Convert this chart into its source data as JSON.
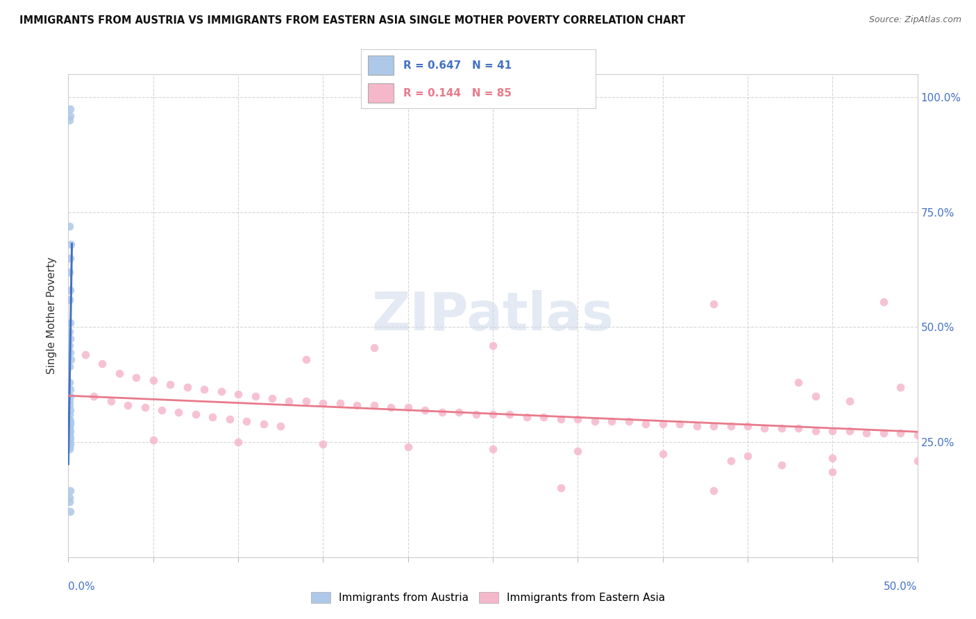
{
  "title": "IMMIGRANTS FROM AUSTRIA VS IMMIGRANTS FROM EASTERN ASIA SINGLE MOTHER POVERTY CORRELATION CHART",
  "source": "Source: ZipAtlas.com",
  "ylabel": "Single Mother Poverty",
  "blue_color": "#adc8e8",
  "pink_color": "#f5b8cb",
  "blue_line_color": "#4472c4",
  "pink_line_color": "#e87a8a",
  "watermark": "ZIPatlas",
  "blue_scatter": [
    [
      0.001,
      0.975
    ],
    [
      0.0012,
      0.96
    ],
    [
      0.0008,
      0.95
    ],
    [
      0.0006,
      0.72
    ],
    [
      0.0014,
      0.68
    ],
    [
      0.001,
      0.65
    ],
    [
      0.0008,
      0.62
    ],
    [
      0.0012,
      0.58
    ],
    [
      0.0006,
      0.56
    ],
    [
      0.001,
      0.51
    ],
    [
      0.0008,
      0.49
    ],
    [
      0.0012,
      0.475
    ],
    [
      0.0006,
      0.46
    ],
    [
      0.001,
      0.445
    ],
    [
      0.0014,
      0.43
    ],
    [
      0.0008,
      0.415
    ],
    [
      0.0006,
      0.38
    ],
    [
      0.001,
      0.365
    ],
    [
      0.0012,
      0.35
    ],
    [
      0.0008,
      0.34
    ],
    [
      0.0006,
      0.33
    ],
    [
      0.001,
      0.32
    ],
    [
      0.0008,
      0.31
    ],
    [
      0.0006,
      0.3
    ],
    [
      0.001,
      0.295
    ],
    [
      0.0012,
      0.29
    ],
    [
      0.0008,
      0.285
    ],
    [
      0.0006,
      0.28
    ],
    [
      0.001,
      0.275
    ],
    [
      0.0008,
      0.27
    ],
    [
      0.0006,
      0.265
    ],
    [
      0.001,
      0.26
    ],
    [
      0.0008,
      0.255
    ],
    [
      0.0006,
      0.25
    ],
    [
      0.001,
      0.245
    ],
    [
      0.0008,
      0.24
    ],
    [
      0.0006,
      0.235
    ],
    [
      0.001,
      0.145
    ],
    [
      0.0008,
      0.13
    ],
    [
      0.0006,
      0.12
    ],
    [
      0.001,
      0.1
    ]
  ],
  "pink_scatter": [
    [
      0.01,
      0.44
    ],
    [
      0.02,
      0.42
    ],
    [
      0.03,
      0.4
    ],
    [
      0.04,
      0.39
    ],
    [
      0.05,
      0.385
    ],
    [
      0.06,
      0.375
    ],
    [
      0.07,
      0.37
    ],
    [
      0.08,
      0.365
    ],
    [
      0.09,
      0.36
    ],
    [
      0.1,
      0.355
    ],
    [
      0.11,
      0.35
    ],
    [
      0.12,
      0.345
    ],
    [
      0.13,
      0.34
    ],
    [
      0.14,
      0.34
    ],
    [
      0.15,
      0.335
    ],
    [
      0.16,
      0.335
    ],
    [
      0.17,
      0.33
    ],
    [
      0.18,
      0.33
    ],
    [
      0.19,
      0.325
    ],
    [
      0.2,
      0.325
    ],
    [
      0.21,
      0.32
    ],
    [
      0.22,
      0.315
    ],
    [
      0.23,
      0.315
    ],
    [
      0.24,
      0.31
    ],
    [
      0.25,
      0.31
    ],
    [
      0.26,
      0.31
    ],
    [
      0.27,
      0.305
    ],
    [
      0.28,
      0.305
    ],
    [
      0.29,
      0.3
    ],
    [
      0.3,
      0.3
    ],
    [
      0.31,
      0.295
    ],
    [
      0.32,
      0.295
    ],
    [
      0.33,
      0.295
    ],
    [
      0.34,
      0.29
    ],
    [
      0.35,
      0.29
    ],
    [
      0.36,
      0.29
    ],
    [
      0.37,
      0.285
    ],
    [
      0.38,
      0.285
    ],
    [
      0.39,
      0.285
    ],
    [
      0.4,
      0.285
    ],
    [
      0.41,
      0.28
    ],
    [
      0.42,
      0.28
    ],
    [
      0.43,
      0.28
    ],
    [
      0.44,
      0.275
    ],
    [
      0.45,
      0.275
    ],
    [
      0.46,
      0.275
    ],
    [
      0.47,
      0.27
    ],
    [
      0.48,
      0.27
    ],
    [
      0.49,
      0.27
    ],
    [
      0.5,
      0.265
    ],
    [
      0.015,
      0.35
    ],
    [
      0.025,
      0.34
    ],
    [
      0.035,
      0.33
    ],
    [
      0.045,
      0.325
    ],
    [
      0.055,
      0.32
    ],
    [
      0.065,
      0.315
    ],
    [
      0.075,
      0.31
    ],
    [
      0.085,
      0.305
    ],
    [
      0.095,
      0.3
    ],
    [
      0.105,
      0.295
    ],
    [
      0.115,
      0.29
    ],
    [
      0.125,
      0.285
    ],
    [
      0.05,
      0.255
    ],
    [
      0.1,
      0.25
    ],
    [
      0.15,
      0.245
    ],
    [
      0.2,
      0.24
    ],
    [
      0.25,
      0.235
    ],
    [
      0.3,
      0.23
    ],
    [
      0.35,
      0.225
    ],
    [
      0.4,
      0.22
    ],
    [
      0.45,
      0.215
    ],
    [
      0.5,
      0.21
    ],
    [
      0.14,
      0.43
    ],
    [
      0.18,
      0.455
    ],
    [
      0.25,
      0.46
    ],
    [
      0.38,
      0.55
    ],
    [
      0.48,
      0.555
    ],
    [
      0.43,
      0.38
    ],
    [
      0.44,
      0.35
    ],
    [
      0.46,
      0.34
    ],
    [
      0.49,
      0.37
    ],
    [
      0.39,
      0.21
    ],
    [
      0.42,
      0.2
    ],
    [
      0.45,
      0.185
    ],
    [
      0.29,
      0.15
    ],
    [
      0.38,
      0.145
    ]
  ],
  "xlim": [
    0.0,
    0.5
  ],
  "ylim": [
    0.0,
    1.05
  ],
  "yticks": [
    0.25,
    0.5,
    0.75,
    1.0
  ],
  "ytick_labels": [
    "25.0%",
    "50.0%",
    "75.0%",
    "100.0%"
  ]
}
